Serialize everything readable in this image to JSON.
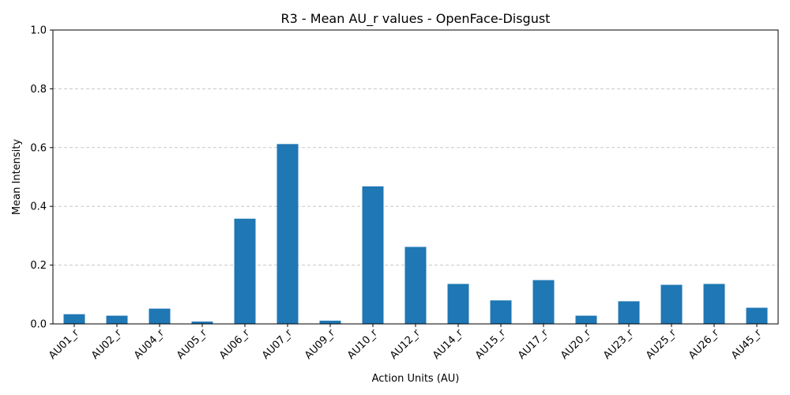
{
  "chart_data": {
    "type": "bar",
    "title": "R3 - Mean AU_r values - OpenFace-Disgust",
    "xlabel": "Action Units (AU)",
    "ylabel": "Mean Intensity",
    "ylim": [
      0,
      1.0
    ],
    "yticks": [
      "0.0",
      "0.2",
      "0.4",
      "0.6",
      "0.8",
      "1.0"
    ],
    "grid": "y-dashed",
    "bar_color": "#1f77b4",
    "categories": [
      "AU01_r",
      "AU02_r",
      "AU04_r",
      "AU05_r",
      "AU06_r",
      "AU07_r",
      "AU09_r",
      "AU10_r",
      "AU12_r",
      "AU14_r",
      "AU15_r",
      "AU17_r",
      "AU20_r",
      "AU23_r",
      "AU25_r",
      "AU26_r",
      "AU45_r"
    ],
    "values": [
      0.033,
      0.028,
      0.052,
      0.008,
      0.358,
      0.612,
      0.011,
      0.468,
      0.262,
      0.136,
      0.08,
      0.149,
      0.028,
      0.077,
      0.133,
      0.136,
      0.055
    ]
  }
}
